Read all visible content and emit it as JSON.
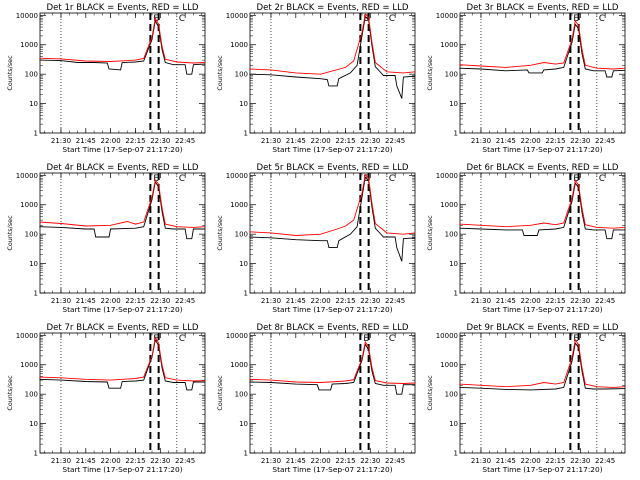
{
  "figure": {
    "xlabel": "Start Time (17-Sep-07 21:17:20)",
    "ylabel": "Counts/sec",
    "xtick_labels": [
      "21:30",
      "21:45",
      "22:00",
      "22:15",
      "22:30",
      "22:45"
    ],
    "ytick_labels": [
      "1",
      "10",
      "100",
      "1000",
      "10000"
    ],
    "colors": {
      "events": "#000000",
      "lld": "#ff0000",
      "axes": "#000000"
    }
  },
  "chart_data": [
    {
      "type": "line",
      "title": "Det 1r BLACK = Events, RED = LLD",
      "xlabel": "Start Time (17-Sep-07 21:17:20)",
      "ylabel": "Counts/sec",
      "yscale": "log",
      "ylim": [
        1,
        12000
      ],
      "xlim": [
        "21:17:20",
        "22:57:00"
      ],
      "corner_labels": [
        "E",
        "C"
      ],
      "vertical_dotted_lines": [
        "21:30",
        "22:40"
      ],
      "vertical_dashed_lines": [
        "22:24",
        "22:29"
      ],
      "series": [
        {
          "name": "Events",
          "x": [
            "21:17",
            "21:30",
            "21:40",
            "21:50",
            "21:58",
            "21:59",
            "22:06",
            "22:07",
            "22:15",
            "22:20",
            "22:25",
            "22:27",
            "22:29",
            "22:31",
            "22:33",
            "22:38",
            "22:45",
            "22:46",
            "22:49",
            "22:50",
            "22:57"
          ],
          "y": [
            300,
            290,
            250,
            250,
            240,
            150,
            140,
            250,
            260,
            280,
            1500,
            6500,
            4000,
            700,
            250,
            210,
            210,
            100,
            100,
            210,
            220
          ]
        },
        {
          "name": "LLD",
          "x": [
            "21:17",
            "21:30",
            "21:45",
            "22:00",
            "22:15",
            "22:20",
            "22:25",
            "22:27",
            "22:29",
            "22:31",
            "22:33",
            "22:40",
            "22:50",
            "22:57"
          ],
          "y": [
            350,
            330,
            280,
            270,
            300,
            340,
            1800,
            8000,
            5000,
            900,
            320,
            260,
            240,
            250
          ]
        }
      ]
    },
    {
      "type": "line",
      "title": "Det 2r BLACK = Events, RED = LLD",
      "xlabel": "Start Time (17-Sep-07 21:17:20)",
      "ylabel": "Counts/sec",
      "yscale": "log",
      "ylim": [
        1,
        12000
      ],
      "xlim": [
        "21:17:20",
        "22:57:00"
      ],
      "corner_labels": [
        "E",
        "C"
      ],
      "vertical_dotted_lines": [
        "21:30",
        "22:40"
      ],
      "vertical_dashed_lines": [
        "22:24",
        "22:29"
      ],
      "series": [
        {
          "name": "Events",
          "x": [
            "21:17",
            "21:30",
            "21:45",
            "22:00",
            "22:04",
            "22:05",
            "22:10",
            "22:11",
            "22:18",
            "22:22",
            "22:25",
            "22:27",
            "22:29",
            "22:31",
            "22:33",
            "22:38",
            "22:45",
            "22:46",
            "22:49",
            "22:50",
            "22:57"
          ],
          "y": [
            100,
            95,
            80,
            70,
            65,
            40,
            40,
            70,
            110,
            200,
            2000,
            9000,
            7000,
            900,
            180,
            90,
            90,
            40,
            15,
            80,
            85
          ]
        },
        {
          "name": "LLD",
          "x": [
            "21:17",
            "21:30",
            "21:45",
            "22:00",
            "22:15",
            "22:20",
            "22:25",
            "22:27",
            "22:29",
            "22:31",
            "22:33",
            "22:40",
            "22:50",
            "22:57"
          ],
          "y": [
            150,
            140,
            110,
            100,
            170,
            280,
            2600,
            11000,
            8500,
            1200,
            250,
            120,
            110,
            120
          ]
        }
      ]
    },
    {
      "type": "line",
      "title": "Det 3r BLACK = Events, RED = LLD",
      "xlabel": "Start Time (17-Sep-07 21:17:20)",
      "ylabel": "Counts/sec",
      "yscale": "log",
      "ylim": [
        1,
        12000
      ],
      "xlim": [
        "21:17:20",
        "22:57:00"
      ],
      "corner_labels": [
        "E",
        "C"
      ],
      "vertical_dotted_lines": [
        "21:30",
        "22:40"
      ],
      "vertical_dashed_lines": [
        "22:24",
        "22:29"
      ],
      "series": [
        {
          "name": "Events",
          "x": [
            "21:17",
            "21:30",
            "21:45",
            "21:58",
            "21:59",
            "22:07",
            "22:08",
            "22:15",
            "22:20",
            "22:25",
            "22:27",
            "22:29",
            "22:31",
            "22:33",
            "22:38",
            "22:45",
            "22:46",
            "22:49",
            "22:50",
            "22:57"
          ],
          "y": [
            160,
            150,
            130,
            140,
            110,
            110,
            140,
            150,
            170,
            1200,
            5000,
            3500,
            500,
            150,
            130,
            130,
            80,
            80,
            130,
            135
          ]
        },
        {
          "name": "LLD",
          "x": [
            "21:17",
            "21:30",
            "21:45",
            "22:00",
            "22:08",
            "22:15",
            "22:20",
            "22:25",
            "22:27",
            "22:29",
            "22:31",
            "22:33",
            "22:40",
            "22:50",
            "22:57"
          ],
          "y": [
            210,
            190,
            170,
            200,
            250,
            220,
            240,
            1500,
            6500,
            4500,
            700,
            200,
            160,
            150,
            160
          ]
        }
      ]
    },
    {
      "type": "line",
      "title": "Det 4r BLACK = Events, RED = LLD",
      "xlabel": "Start Time (17-Sep-07 21:17:20)",
      "ylabel": "Counts/sec",
      "yscale": "log",
      "ylim": [
        1,
        12000
      ],
      "xlim": [
        "21:17:20",
        "22:57:00"
      ],
      "corner_labels": [
        "E",
        "C"
      ],
      "vertical_dotted_lines": [
        "21:30",
        "22:40"
      ],
      "vertical_dashed_lines": [
        "22:24",
        "22:29"
      ],
      "series": [
        {
          "name": "Events",
          "x": [
            "21:17",
            "21:30",
            "21:45",
            "21:50",
            "21:51",
            "21:59",
            "22:00",
            "22:15",
            "22:20",
            "22:25",
            "22:27",
            "22:29",
            "22:31",
            "22:33",
            "22:38",
            "22:45",
            "22:46",
            "22:49",
            "22:50",
            "22:57"
          ],
          "y": [
            180,
            170,
            150,
            150,
            80,
            80,
            150,
            160,
            180,
            1500,
            6000,
            4000,
            600,
            160,
            150,
            150,
            70,
            70,
            150,
            150
          ]
        },
        {
          "name": "LLD",
          "x": [
            "21:17",
            "21:30",
            "21:45",
            "22:00",
            "22:10",
            "22:15",
            "22:20",
            "22:25",
            "22:27",
            "22:29",
            "22:31",
            "22:33",
            "22:40",
            "22:50",
            "22:57"
          ],
          "y": [
            260,
            230,
            190,
            200,
            270,
            220,
            260,
            1800,
            7000,
            5000,
            800,
            220,
            180,
            170,
            180
          ]
        }
      ]
    },
    {
      "type": "line",
      "title": "Det 5r BLACK = Events, RED = LLD",
      "xlabel": "Start Time (17-Sep-07 21:17:20)",
      "ylabel": "Counts/sec",
      "yscale": "log",
      "ylim": [
        1,
        12000
      ],
      "xlim": [
        "21:17:20",
        "22:57:00"
      ],
      "corner_labels": [
        "E",
        "C"
      ],
      "vertical_dotted_lines": [
        "21:30",
        "22:40"
      ],
      "vertical_dashed_lines": [
        "22:24",
        "22:29"
      ],
      "series": [
        {
          "name": "Events",
          "x": [
            "21:17",
            "21:30",
            "21:45",
            "22:00",
            "22:04",
            "22:05",
            "22:10",
            "22:11",
            "22:18",
            "22:22",
            "22:25",
            "22:27",
            "22:29",
            "22:31",
            "22:33",
            "22:38",
            "22:45",
            "22:46",
            "22:49",
            "22:50",
            "22:57"
          ],
          "y": [
            80,
            75,
            65,
            60,
            60,
            35,
            35,
            60,
            100,
            180,
            1800,
            8500,
            6500,
            800,
            160,
            80,
            80,
            35,
            12,
            70,
            75
          ]
        },
        {
          "name": "LLD",
          "x": [
            "21:17",
            "21:30",
            "21:45",
            "22:00",
            "22:10",
            "22:15",
            "22:20",
            "22:25",
            "22:27",
            "22:29",
            "22:31",
            "22:33",
            "22:40",
            "22:50",
            "22:57"
          ],
          "y": [
            120,
            110,
            90,
            100,
            150,
            190,
            300,
            2500,
            10500,
            8000,
            1100,
            230,
            110,
            100,
            110
          ]
        }
      ]
    },
    {
      "type": "line",
      "title": "Det 6r BLACK = Events, RED = LLD",
      "xlabel": "Start Time (17-Sep-07 21:17:20)",
      "ylabel": "Counts/sec",
      "yscale": "log",
      "ylim": [
        1,
        12000
      ],
      "xlim": [
        "21:17:20",
        "22:57:00"
      ],
      "corner_labels": [
        "E",
        "C"
      ],
      "vertical_dotted_lines": [
        "21:30",
        "22:40"
      ],
      "vertical_dashed_lines": [
        "22:24",
        "22:29"
      ],
      "series": [
        {
          "name": "Events",
          "x": [
            "21:17",
            "21:30",
            "21:45",
            "21:55",
            "21:56",
            "22:04",
            "22:05",
            "22:15",
            "22:20",
            "22:25",
            "22:27",
            "22:29",
            "22:31",
            "22:33",
            "22:38",
            "22:45",
            "22:46",
            "22:49",
            "22:50",
            "22:57"
          ],
          "y": [
            160,
            150,
            140,
            140,
            90,
            90,
            140,
            150,
            170,
            1300,
            5500,
            3800,
            550,
            150,
            140,
            140,
            70,
            70,
            140,
            140
          ]
        },
        {
          "name": "LLD",
          "x": [
            "21:17",
            "21:30",
            "21:45",
            "22:00",
            "22:08",
            "22:15",
            "22:20",
            "22:25",
            "22:27",
            "22:29",
            "22:31",
            "22:33",
            "22:40",
            "22:50",
            "22:57"
          ],
          "y": [
            220,
            200,
            180,
            200,
            240,
            210,
            240,
            1600,
            6800,
            4700,
            750,
            210,
            170,
            160,
            170
          ]
        }
      ]
    },
    {
      "type": "line",
      "title": "Det 7r BLACK = Events, RED = LLD",
      "xlabel": "Start Time (17-Sep-07 21:17:20)",
      "ylabel": "Counts/sec",
      "yscale": "log",
      "ylim": [
        1,
        12000
      ],
      "xlim": [
        "21:17:20",
        "22:57:00"
      ],
      "corner_labels": [
        "E",
        "C"
      ],
      "vertical_dotted_lines": [
        "21:30",
        "22:40"
      ],
      "vertical_dashed_lines": [
        "22:24",
        "22:29"
      ],
      "series": [
        {
          "name": "Events",
          "x": [
            "21:17",
            "21:30",
            "21:45",
            "21:58",
            "21:59",
            "22:06",
            "22:07",
            "22:15",
            "22:20",
            "22:25",
            "22:27",
            "22:29",
            "22:31",
            "22:33",
            "22:38",
            "22:45",
            "22:46",
            "22:49",
            "22:50",
            "22:57"
          ],
          "y": [
            320,
            300,
            270,
            260,
            160,
            160,
            270,
            280,
            300,
            1800,
            7000,
            4500,
            800,
            280,
            250,
            250,
            140,
            140,
            260,
            260
          ]
        },
        {
          "name": "LLD",
          "x": [
            "21:17",
            "21:30",
            "21:45",
            "22:00",
            "22:15",
            "22:20",
            "22:25",
            "22:27",
            "22:29",
            "22:31",
            "22:33",
            "22:40",
            "22:50",
            "22:57"
          ],
          "y": [
            380,
            360,
            320,
            300,
            340,
            380,
            2000,
            8500,
            5500,
            1000,
            360,
            300,
            280,
            290
          ]
        }
      ]
    },
    {
      "type": "line",
      "title": "Det 8r BLACK = Events, RED = LLD",
      "xlabel": "Start Time (17-Sep-07 21:17:20)",
      "ylabel": "Counts/sec",
      "yscale": "log",
      "ylim": [
        1,
        12000
      ],
      "xlim": [
        "21:17:20",
        "22:57:00"
      ],
      "corner_labels": [
        "E",
        "C"
      ],
      "vertical_dotted_lines": [
        "21:30",
        "22:40"
      ],
      "vertical_dashed_lines": [
        "22:24",
        "22:29"
      ],
      "series": [
        {
          "name": "Events",
          "x": [
            "21:17",
            "21:30",
            "21:45",
            "21:58",
            "21:59",
            "22:06",
            "22:07",
            "22:15",
            "22:20",
            "22:25",
            "22:27",
            "22:29",
            "22:31",
            "22:33",
            "22:38",
            "22:45",
            "22:46",
            "22:49",
            "22:50",
            "22:57"
          ],
          "y": [
            260,
            250,
            220,
            210,
            140,
            140,
            220,
            230,
            250,
            1400,
            5000,
            3200,
            600,
            230,
            200,
            200,
            100,
            100,
            210,
            210
          ]
        },
        {
          "name": "LLD",
          "x": [
            "21:17",
            "21:30",
            "21:45",
            "22:00",
            "22:15",
            "22:20",
            "22:25",
            "22:27",
            "22:29",
            "22:31",
            "22:33",
            "22:40",
            "22:50",
            "22:57"
          ],
          "y": [
            320,
            300,
            260,
            250,
            280,
            310,
            1600,
            6000,
            4000,
            800,
            290,
            240,
            230,
            240
          ]
        }
      ]
    },
    {
      "type": "line",
      "title": "Det 9r BLACK = Events, RED = LLD",
      "xlabel": "Start Time (17-Sep-07 21:17:20)",
      "ylabel": "Counts/sec",
      "yscale": "log",
      "ylim": [
        1,
        12000
      ],
      "xlim": [
        "21:17:20",
        "22:57:00"
      ],
      "corner_labels": [
        "E",
        "C"
      ],
      "vertical_dotted_lines": [
        "21:30",
        "22:40"
      ],
      "vertical_dashed_lines": [
        "22:24",
        "22:29"
      ],
      "series": [
        {
          "name": "Events",
          "x": [
            "21:17",
            "21:30",
            "21:45",
            "22:00",
            "22:15",
            "22:20",
            "22:25",
            "22:27",
            "22:29",
            "22:31",
            "22:33",
            "22:38",
            "22:45",
            "22:57"
          ],
          "y": [
            170,
            160,
            145,
            140,
            150,
            170,
            1300,
            5500,
            3800,
            600,
            160,
            150,
            150,
            155
          ]
        },
        {
          "name": "LLD",
          "x": [
            "21:17",
            "21:30",
            "21:45",
            "22:00",
            "22:08",
            "22:15",
            "22:20",
            "22:25",
            "22:27",
            "22:29",
            "22:31",
            "22:33",
            "22:40",
            "22:50",
            "22:57"
          ],
          "y": [
            220,
            200,
            180,
            200,
            250,
            220,
            250,
            1700,
            7000,
            4800,
            800,
            220,
            180,
            170,
            180
          ]
        }
      ]
    }
  ]
}
